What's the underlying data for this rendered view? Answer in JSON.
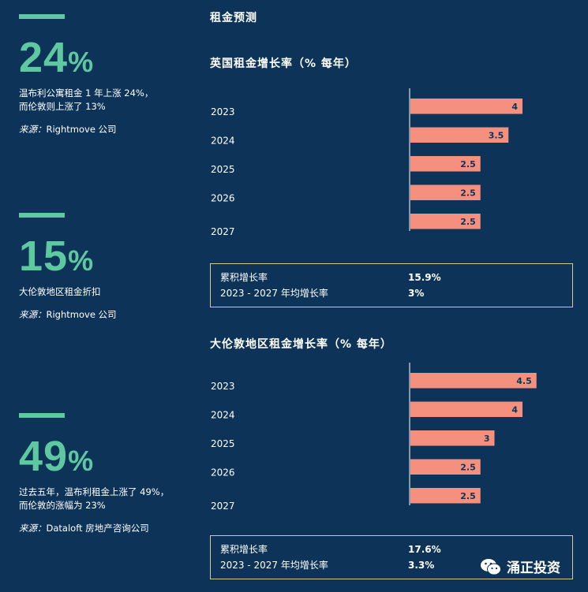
{
  "section_title": "租金预测",
  "stats": [
    {
      "number": "24",
      "percent": "%",
      "desc_line1": "温布利公寓租金 1 年上涨 24%，",
      "desc_line2": "而伦敦则上涨了 13%",
      "source_label": "来源：",
      "source_text": "Rightmove 公司"
    },
    {
      "number": "15",
      "percent": "%",
      "desc_line1": "大伦敦地区租金折扣",
      "desc_line2": "",
      "source_label": "来源：",
      "source_text": "Rightmove 公司"
    },
    {
      "number": "49",
      "percent": "%",
      "desc_line1": "过去五年，温布利租金上涨了 49%，",
      "desc_line2": "而伦敦的涨幅为 23%",
      "source_label": "来源：",
      "source_text": "Dataloft 房地产咨询公司"
    }
  ],
  "summaries": [
    {
      "row1_label": "累积增长率",
      "row1_value": "15.9%",
      "row2_label": "2023 - 2027 年均增长率",
      "row2_value": "3%"
    },
    {
      "row1_label": "累积增长率",
      "row1_value": "17.6%",
      "row2_label": "2023 - 2027 年均增长率",
      "row2_value": "3.3%"
    }
  ],
  "watermark": "涌正投资",
  "colors": {
    "background": "#0d3458",
    "accent": "#5ec9a0",
    "bar": "#f4907d",
    "frame": "#d8c98f"
  },
  "chart_data": [
    {
      "type": "bar",
      "orientation": "horizontal",
      "title": "英国租金增长率（% 每年）",
      "categories": [
        "2023",
        "2024",
        "2025",
        "2026",
        "2027"
      ],
      "values": [
        4,
        3.5,
        2.5,
        2.5,
        2.5
      ],
      "data_labels": [
        "4",
        "3.5",
        "2.5",
        "2.5",
        "2.5"
      ],
      "xlim": [
        0,
        6.5
      ],
      "grid": false
    },
    {
      "type": "bar",
      "orientation": "horizontal",
      "title": "大伦敦地区租金增长率（% 每年）",
      "categories": [
        "2023",
        "2024",
        "2025",
        "2026",
        "2027"
      ],
      "values": [
        4.5,
        4,
        3,
        2.5,
        2.5
      ],
      "data_labels": [
        "4.5",
        "4",
        "3",
        "2.5",
        "2.5"
      ],
      "xlim": [
        0,
        6.5
      ],
      "grid": false
    }
  ]
}
